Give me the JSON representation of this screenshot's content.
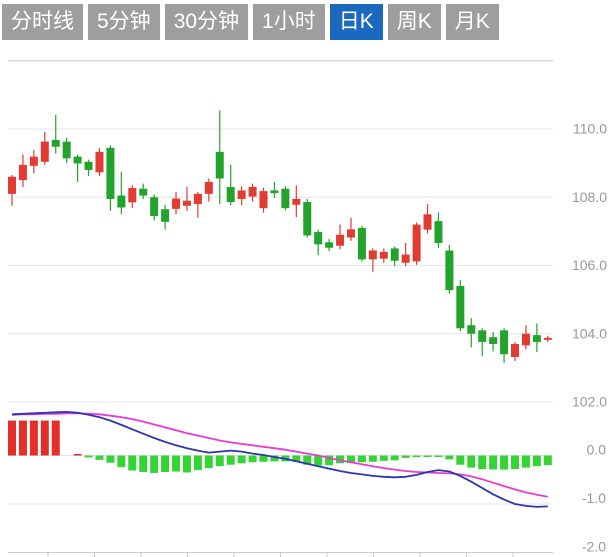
{
  "toolbar": {
    "tabs": [
      {
        "label": "分时线",
        "active": false
      },
      {
        "label": "5分钟",
        "active": false
      },
      {
        "label": "30分钟",
        "active": false
      },
      {
        "label": "1小时",
        "active": false
      },
      {
        "label": "日K",
        "active": true
      },
      {
        "label": "周K",
        "active": false
      },
      {
        "label": "月K",
        "active": false
      }
    ]
  },
  "colors": {
    "tab_bg": "#9e9e9e",
    "tab_active_bg": "#1b69be",
    "tab_text": "#ffffff",
    "candle_up": "#e23b32",
    "candle_down": "#22a42c",
    "hist_up": "#e62e29",
    "hist_down": "#35d435",
    "dif_line": "#2c35b0",
    "dea_line": "#e93ad4",
    "grid": "#e6e6e6",
    "grid_top": "#d8d8d8",
    "axis_label": "#999999",
    "axis_line": "#c9c9c9",
    "background": "#ffffff"
  },
  "chart_data": {
    "type": "candlestick",
    "title": "",
    "legend": [],
    "grid": true,
    "price_axis": {
      "side": "right",
      "ticks": [
        {
          "value": 110,
          "label": "110.0"
        },
        {
          "value": 108,
          "label": "108.0"
        },
        {
          "value": 106,
          "label": "106.0"
        },
        {
          "value": 104,
          "label": "104.0"
        },
        {
          "value": 102,
          "label": "102.0"
        }
      ],
      "top_gridline_value": 112,
      "range": [
        101.6,
        112.0
      ]
    },
    "indicator_axis": {
      "side": "right",
      "ticks": [
        {
          "value": 0,
          "label": "0.0"
        },
        {
          "value": -1,
          "label": "-1.0"
        },
        {
          "value": -2,
          "label": "-2.0"
        }
      ],
      "range": [
        -2.05,
        0.95
      ]
    },
    "x_axis": {
      "tick_count": 11,
      "labels_visible": false
    },
    "candles_ohlc": [
      [
        108.1,
        108.65,
        107.75,
        108.6
      ],
      [
        108.5,
        109.25,
        108.3,
        108.95
      ],
      [
        108.92,
        109.38,
        108.7,
        109.19
      ],
      [
        109.04,
        109.92,
        108.95,
        109.63
      ],
      [
        109.68,
        110.41,
        109.28,
        109.48
      ],
      [
        109.63,
        109.75,
        109.0,
        109.14
      ],
      [
        109.19,
        109.25,
        108.45,
        108.99
      ],
      [
        109.04,
        109.1,
        108.62,
        108.8
      ],
      [
        108.73,
        109.44,
        108.62,
        109.33
      ],
      [
        109.45,
        109.52,
        107.6,
        107.95
      ],
      [
        108.05,
        108.75,
        107.5,
        107.7
      ],
      [
        107.85,
        108.35,
        107.68,
        108.27
      ],
      [
        108.25,
        108.4,
        107.95,
        108.05
      ],
      [
        108.0,
        108.08,
        107.32,
        107.45
      ],
      [
        107.65,
        107.78,
        107.05,
        107.28
      ],
      [
        107.66,
        108.15,
        107.5,
        107.96
      ],
      [
        107.75,
        108.3,
        107.6,
        107.9
      ],
      [
        107.8,
        108.15,
        107.4,
        108.1
      ],
      [
        108.1,
        108.55,
        107.87,
        108.45
      ],
      [
        109.33,
        110.55,
        107.8,
        108.55
      ],
      [
        108.3,
        108.95,
        107.76,
        107.86
      ],
      [
        107.95,
        108.32,
        107.76,
        108.2
      ],
      [
        108.02,
        108.4,
        107.88,
        108.3
      ],
      [
        107.68,
        108.28,
        107.55,
        108.18
      ],
      [
        108.2,
        108.45,
        107.98,
        108.12
      ],
      [
        108.25,
        108.32,
        107.62,
        107.68
      ],
      [
        107.78,
        108.35,
        107.42,
        107.95
      ],
      [
        107.86,
        107.95,
        106.82,
        106.88
      ],
      [
        106.98,
        107.05,
        106.3,
        106.62
      ],
      [
        106.68,
        106.78,
        106.42,
        106.52
      ],
      [
        106.58,
        107.2,
        106.48,
        106.9
      ],
      [
        106.82,
        107.4,
        106.72,
        107.06
      ],
      [
        107.1,
        107.16,
        106.12,
        106.18
      ],
      [
        106.18,
        106.5,
        105.82,
        106.44
      ],
      [
        106.2,
        106.5,
        106.08,
        106.4
      ],
      [
        106.5,
        106.56,
        105.98,
        106.14
      ],
      [
        106.08,
        106.66,
        105.98,
        106.32
      ],
      [
        106.12,
        107.26,
        106.02,
        107.2
      ],
      [
        107.05,
        107.8,
        106.94,
        107.5
      ],
      [
        107.3,
        107.56,
        106.52,
        106.66
      ],
      [
        106.44,
        106.6,
        105.18,
        105.28
      ],
      [
        105.4,
        105.58,
        104.08,
        104.16
      ],
      [
        104.25,
        104.46,
        103.6,
        104.0
      ],
      [
        104.1,
        104.16,
        103.34,
        103.76
      ],
      [
        103.9,
        104.05,
        103.48,
        103.7
      ],
      [
        104.1,
        104.16,
        103.14,
        103.4
      ],
      [
        103.32,
        103.76,
        103.2,
        103.7
      ],
      [
        103.66,
        104.25,
        103.54,
        104.0
      ],
      [
        103.96,
        104.3,
        103.46,
        103.76
      ],
      [
        103.82,
        103.94,
        103.76,
        103.88
      ]
    ],
    "macd": {
      "histogram": [
        0.72,
        0.72,
        0.72,
        0.72,
        0.72,
        0,
        0.02,
        -0.04,
        -0.09,
        -0.15,
        -0.24,
        -0.31,
        -0.34,
        -0.36,
        -0.34,
        -0.33,
        -0.35,
        -0.3,
        -0.26,
        -0.22,
        -0.19,
        -0.16,
        -0.14,
        -0.13,
        -0.12,
        -0.12,
        -0.13,
        -0.19,
        -0.21,
        -0.2,
        -0.16,
        -0.15,
        -0.14,
        -0.13,
        -0.11,
        -0.1,
        -0.05,
        -0.02,
        -0.01,
        -0.01,
        -0.08,
        -0.19,
        -0.25,
        -0.28,
        -0.29,
        -0.29,
        -0.28,
        -0.25,
        -0.22,
        -0.2
      ],
      "dif": [
        0.85,
        0.86,
        0.87,
        0.88,
        0.89,
        0.9,
        0.88,
        0.84,
        0.79,
        0.72,
        0.63,
        0.54,
        0.45,
        0.36,
        0.28,
        0.21,
        0.15,
        0.1,
        0.06,
        0.08,
        0.1,
        0.08,
        0.04,
        0.01,
        -0.03,
        -0.07,
        -0.12,
        -0.17,
        -0.22,
        -0.27,
        -0.32,
        -0.36,
        -0.39,
        -0.42,
        -0.44,
        -0.45,
        -0.44,
        -0.4,
        -0.34,
        -0.3,
        -0.33,
        -0.42,
        -0.54,
        -0.67,
        -0.8,
        -0.91,
        -1.0,
        -1.04,
        -1.06,
        -1.05
      ],
      "dea": [
        0.84,
        0.85,
        0.85,
        0.86,
        0.86,
        0.87,
        0.87,
        0.86,
        0.85,
        0.82,
        0.79,
        0.75,
        0.7,
        0.64,
        0.58,
        0.52,
        0.46,
        0.41,
        0.36,
        0.31,
        0.27,
        0.24,
        0.21,
        0.18,
        0.15,
        0.12,
        0.08,
        0.04,
        0.0,
        -0.05,
        -0.1,
        -0.14,
        -0.18,
        -0.22,
        -0.26,
        -0.29,
        -0.32,
        -0.34,
        -0.35,
        -0.36,
        -0.37,
        -0.39,
        -0.43,
        -0.49,
        -0.56,
        -0.63,
        -0.7,
        -0.76,
        -0.81,
        -0.85
      ]
    }
  }
}
